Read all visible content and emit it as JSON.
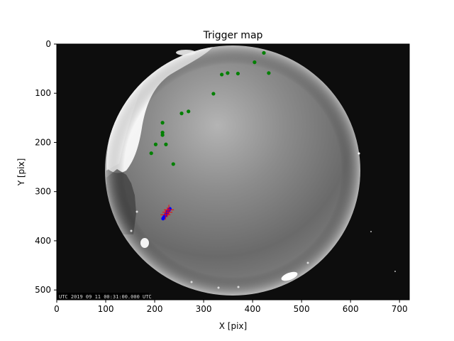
{
  "chart_data": {
    "type": "scatter",
    "title": "Trigger map",
    "xlabel": "X [pix]",
    "ylabel": "Y [pix]",
    "xlim": [
      0,
      720
    ],
    "ylim": [
      520,
      0
    ],
    "y_inverted": true,
    "grid": false,
    "background": "all-sky camera image (fisheye night sky)",
    "x_ticks": [
      0,
      100,
      200,
      300,
      400,
      500,
      600,
      700
    ],
    "y_ticks": [
      0,
      100,
      200,
      300,
      400,
      500
    ],
    "image_timestamp_text": "UTC 2019 09 11 00:31:00.000 UTC",
    "series": [
      {
        "marker": "dot",
        "color": "#008000",
        "points": [
          {
            "x": 423,
            "y": 18
          },
          {
            "x": 404,
            "y": 37
          },
          {
            "x": 433,
            "y": 59
          },
          {
            "x": 370,
            "y": 60
          },
          {
            "x": 349,
            "y": 59
          },
          {
            "x": 337,
            "y": 62
          },
          {
            "x": 320,
            "y": 101
          },
          {
            "x": 269,
            "y": 137
          },
          {
            "x": 255,
            "y": 141
          },
          {
            "x": 216,
            "y": 160
          },
          {
            "x": 216,
            "y": 180
          },
          {
            "x": 216,
            "y": 185
          },
          {
            "x": 202,
            "y": 204
          },
          {
            "x": 223,
            "y": 204
          },
          {
            "x": 193,
            "y": 222
          },
          {
            "x": 238,
            "y": 244
          }
        ]
      },
      {
        "marker": "line",
        "color": "#0000ff",
        "points": [
          {
            "x": 217,
            "y": 355
          },
          {
            "x": 222,
            "y": 348
          },
          {
            "x": 227,
            "y": 340
          },
          {
            "x": 231,
            "y": 335
          }
        ]
      },
      {
        "marker": "plus",
        "color": "#ff0000",
        "points": [
          {
            "x": 222,
            "y": 347
          },
          {
            "x": 226,
            "y": 342
          },
          {
            "x": 229,
            "y": 337
          }
        ]
      }
    ]
  }
}
